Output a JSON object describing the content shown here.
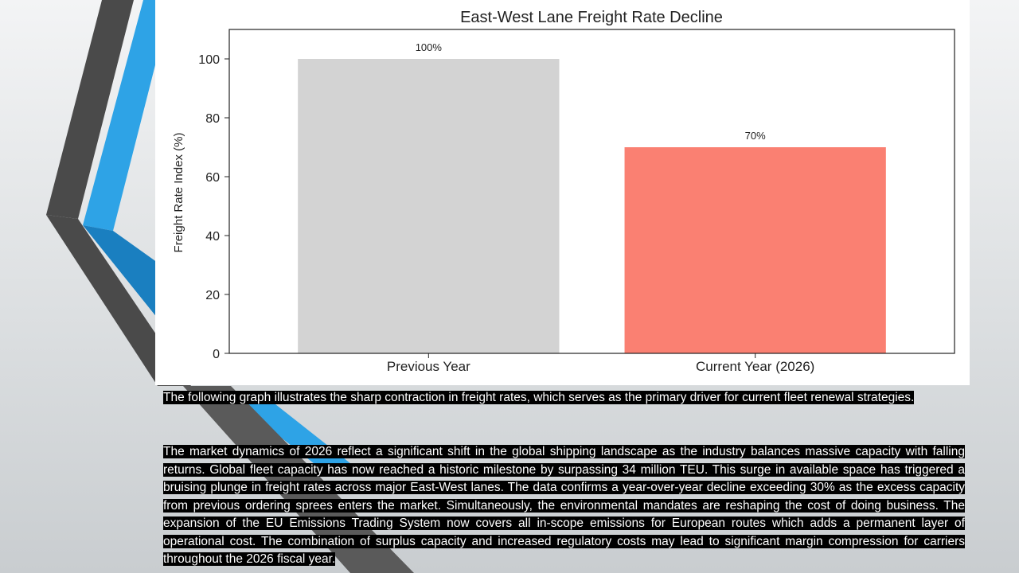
{
  "colors": {
    "bar_previous": "#d3d3d3",
    "bar_current": "#fa8072",
    "decor_dark": "#4a4a4a",
    "decor_blue": "#2ea3e6",
    "decor_blue_dark": "#1a7fc0",
    "text_highlight": "#000000"
  },
  "caption": "The following graph illustrates the sharp contraction in freight rates, which serves as the primary driver for current fleet renewal strategies.",
  "body": "The market dynamics of 2026 reflect a significant shift in the global shipping landscape as the industry balances massive capacity with falling returns. Global fleet capacity has now reached a historic milestone by surpassing 34 million TEU. This surge in available space has triggered a bruising plunge in freight rates across major East-West lanes. The data confirms a year-over-year decline exceeding 30% as the excess capacity from previous ordering sprees enters the market. Simultaneously, the environmental mandates are reshaping the cost of doing business. The expansion of the EU Emissions Trading System now covers all in-scope emissions for European routes which adds a permanent layer of operational cost. The combination of surplus capacity and increased regulatory costs may lead to significant margin compression for carriers throughout the 2026 fiscal year.",
  "chart_data": {
    "type": "bar",
    "title": "East-West Lane Freight Rate Decline",
    "xlabel": "",
    "ylabel": "Freight Rate Index (%)",
    "categories": [
      "Previous Year",
      "Current Year (2026)"
    ],
    "values": [
      100,
      70
    ],
    "data_labels": [
      "100%",
      "70%"
    ],
    "ylim": [
      0,
      110
    ],
    "yticks": [
      0,
      20,
      40,
      60,
      80,
      100
    ],
    "grid": false,
    "legend": "none"
  }
}
